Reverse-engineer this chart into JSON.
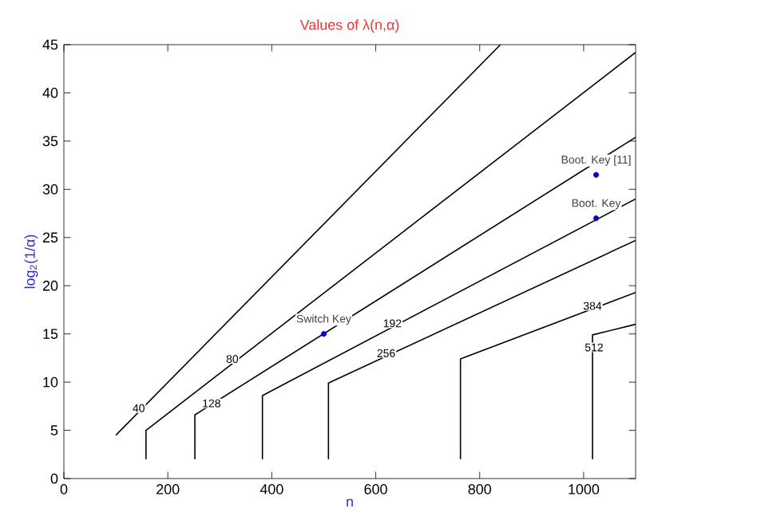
{
  "chart_data": {
    "type": "line",
    "title": "Values of λ(n,α)",
    "xlabel": "n",
    "ylabel": "log$_{2}$(1/α)",
    "xlim": [
      0,
      1100
    ],
    "ylim": [
      0,
      45
    ],
    "xticks": [
      0,
      200,
      400,
      600,
      800,
      1000
    ],
    "yticks": [
      0,
      5,
      10,
      15,
      20,
      25,
      30,
      35,
      40,
      45
    ],
    "grid": false,
    "marker": "none",
    "line_style": "solid",
    "series": [
      {
        "color": "#000000",
        "x": [
          100,
          840
        ],
        "values": [
          4.5,
          45
        ]
      },
      {
        "color": "#000000",
        "x": [
          158,
          158,
          1100
        ],
        "values": [
          2,
          5,
          44.2
        ]
      },
      {
        "color": "#000000",
        "x": [
          252,
          252,
          1100
        ],
        "values": [
          2,
          6.6,
          35.4
        ]
      },
      {
        "color": "#000000",
        "x": [
          382,
          382,
          1100
        ],
        "values": [
          2,
          8.6,
          29
        ]
      },
      {
        "color": "#000000",
        "x": [
          509,
          509,
          1100
        ],
        "values": [
          2,
          9.9,
          24.7
        ]
      },
      {
        "color": "#000000",
        "x": [
          763,
          763,
          1100
        ],
        "values": [
          2,
          12.4,
          19.3
        ]
      },
      {
        "color": "#000000",
        "x": [
          1017,
          1017,
          1100
        ],
        "values": [
          2,
          14.9,
          16
        ]
      },
      {
        "type": "scatter",
        "color": "#0000cc",
        "marker": "circle",
        "x": [
          500,
          1024,
          1024
        ],
        "values": [
          15,
          31.5,
          27
        ]
      }
    ],
    "annotations": [
      {
        "text": "40",
        "x": 144,
        "y": 7.3
      },
      {
        "text": "80",
        "x": 324,
        "y": 12.4
      },
      {
        "text": "128",
        "x": 284,
        "y": 7.8
      },
      {
        "text": "192",
        "x": 632,
        "y": 16.1
      },
      {
        "text": "256",
        "x": 620,
        "y": 13
      },
      {
        "text": "384",
        "x": 1017,
        "y": 17.9
      },
      {
        "text": "512",
        "x": 1020,
        "y": 13.6
      },
      {
        "text": "Switch Key",
        "x": 500,
        "y": 15
      },
      {
        "text": "Boot. Key [11]",
        "x": 1024,
        "y": 31.5
      },
      {
        "text": "Boot. Key",
        "x": 1024,
        "y": 27
      }
    ]
  }
}
